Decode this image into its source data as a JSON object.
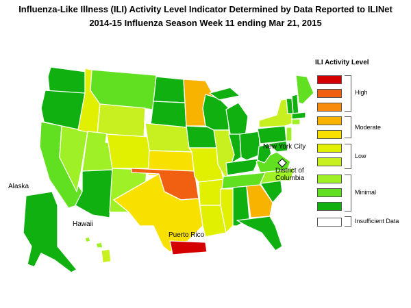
{
  "title_line1": "Influenza-Like Illness (ILI) Activity Level Indicator Determined by Data Reported to ILINet",
  "title_line2": "2014-15  Influenza Season Week  11 ending Mar 21, 2015",
  "legend": {
    "title": "ILI Activity Level",
    "swatches": [
      {
        "level": 10,
        "color": "#d40000"
      },
      {
        "level": 9,
        "color": "#f06010"
      },
      {
        "level": 8,
        "color": "#f88b0b"
      },
      {
        "level": 7,
        "color": "#f8b200"
      },
      {
        "level": 6,
        "color": "#f8e000"
      },
      {
        "level": 5,
        "color": "#e1f000"
      },
      {
        "level": 4,
        "color": "#c8f020"
      },
      {
        "level": 3,
        "color": "#a0f028"
      },
      {
        "level": 2,
        "color": "#60e020"
      },
      {
        "level": 1,
        "color": "#10b010"
      },
      {
        "level": 0,
        "color": "#ffffff"
      }
    ],
    "groups": {
      "high": "High",
      "moderate": "Moderate",
      "low": "Low",
      "minimal": "Minimal",
      "insufficient": "Insufficient Data"
    }
  },
  "labels": {
    "alaska": "Alaska",
    "hawaii": "Hawaii",
    "puerto_rico": "Puerto Rico",
    "nyc": "New York City",
    "dc_line1": "District of",
    "dc_line2": "Columbia"
  },
  "map_colors": {
    "minimal_dark": "#10b010",
    "minimal_mid": "#60e020",
    "minimal_light": "#a0f028",
    "low_4": "#c8f020",
    "low_5": "#e1f000",
    "moderate_6": "#f8e000",
    "moderate_7": "#f8b200",
    "high_9": "#f06010",
    "high_10": "#d40000",
    "border": "#ffffff"
  }
}
